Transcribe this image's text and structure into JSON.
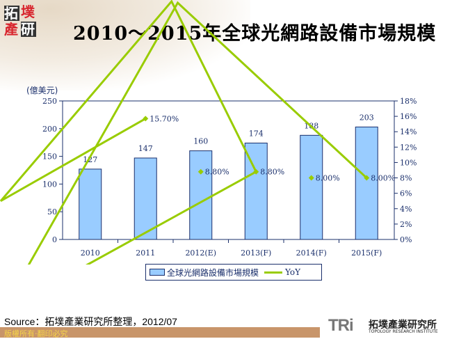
{
  "logo": {
    "chars": [
      "拓",
      "墣",
      "產",
      "研"
    ]
  },
  "title": "2010～2015年全球光網路設備市場規模",
  "unit": "(億美元)",
  "chart_data": {
    "type": "bar+line",
    "categories": [
      "2010",
      "2011",
      "2012(E)",
      "2013(F)",
      "2014(F)",
      "2015(F)"
    ],
    "series": [
      {
        "name": "全球光網路設備市場規模",
        "type": "bar",
        "axis": "left",
        "values": [
          127,
          147,
          160,
          174,
          188,
          203
        ],
        "labels": [
          "127",
          "147",
          "160",
          "174",
          "188",
          "203"
        ],
        "color": "#99ccff"
      },
      {
        "name": "YoY",
        "type": "line",
        "axis": "right",
        "values": [
          null,
          15.7,
          8.8,
          8.8,
          8.0,
          8.0
        ],
        "labels": [
          null,
          "15.70%",
          "8.80%",
          "8.80%",
          "8.00%",
          "8.00%"
        ],
        "color": "#99cc00"
      }
    ],
    "ylabel": "(億美元)",
    "ylim": [
      0,
      250
    ],
    "yticks": [
      0,
      50,
      100,
      150,
      200,
      250
    ],
    "y2lim": [
      0,
      18
    ],
    "y2ticks": [
      "0%",
      "2%",
      "4%",
      "6%",
      "8%",
      "10%",
      "12%",
      "14%",
      "16%",
      "18%"
    ],
    "grid": false,
    "legend": "bottom"
  },
  "source": "Source：拓墣產業研究所整理，2012/07",
  "footer": {
    "copyright": "版權所有‧翻印必究",
    "brand": "TRi",
    "brand_cn": "拓墣產業研究所",
    "brand_en": "TOPOLOGY RESEARCH INSTITUTE"
  }
}
